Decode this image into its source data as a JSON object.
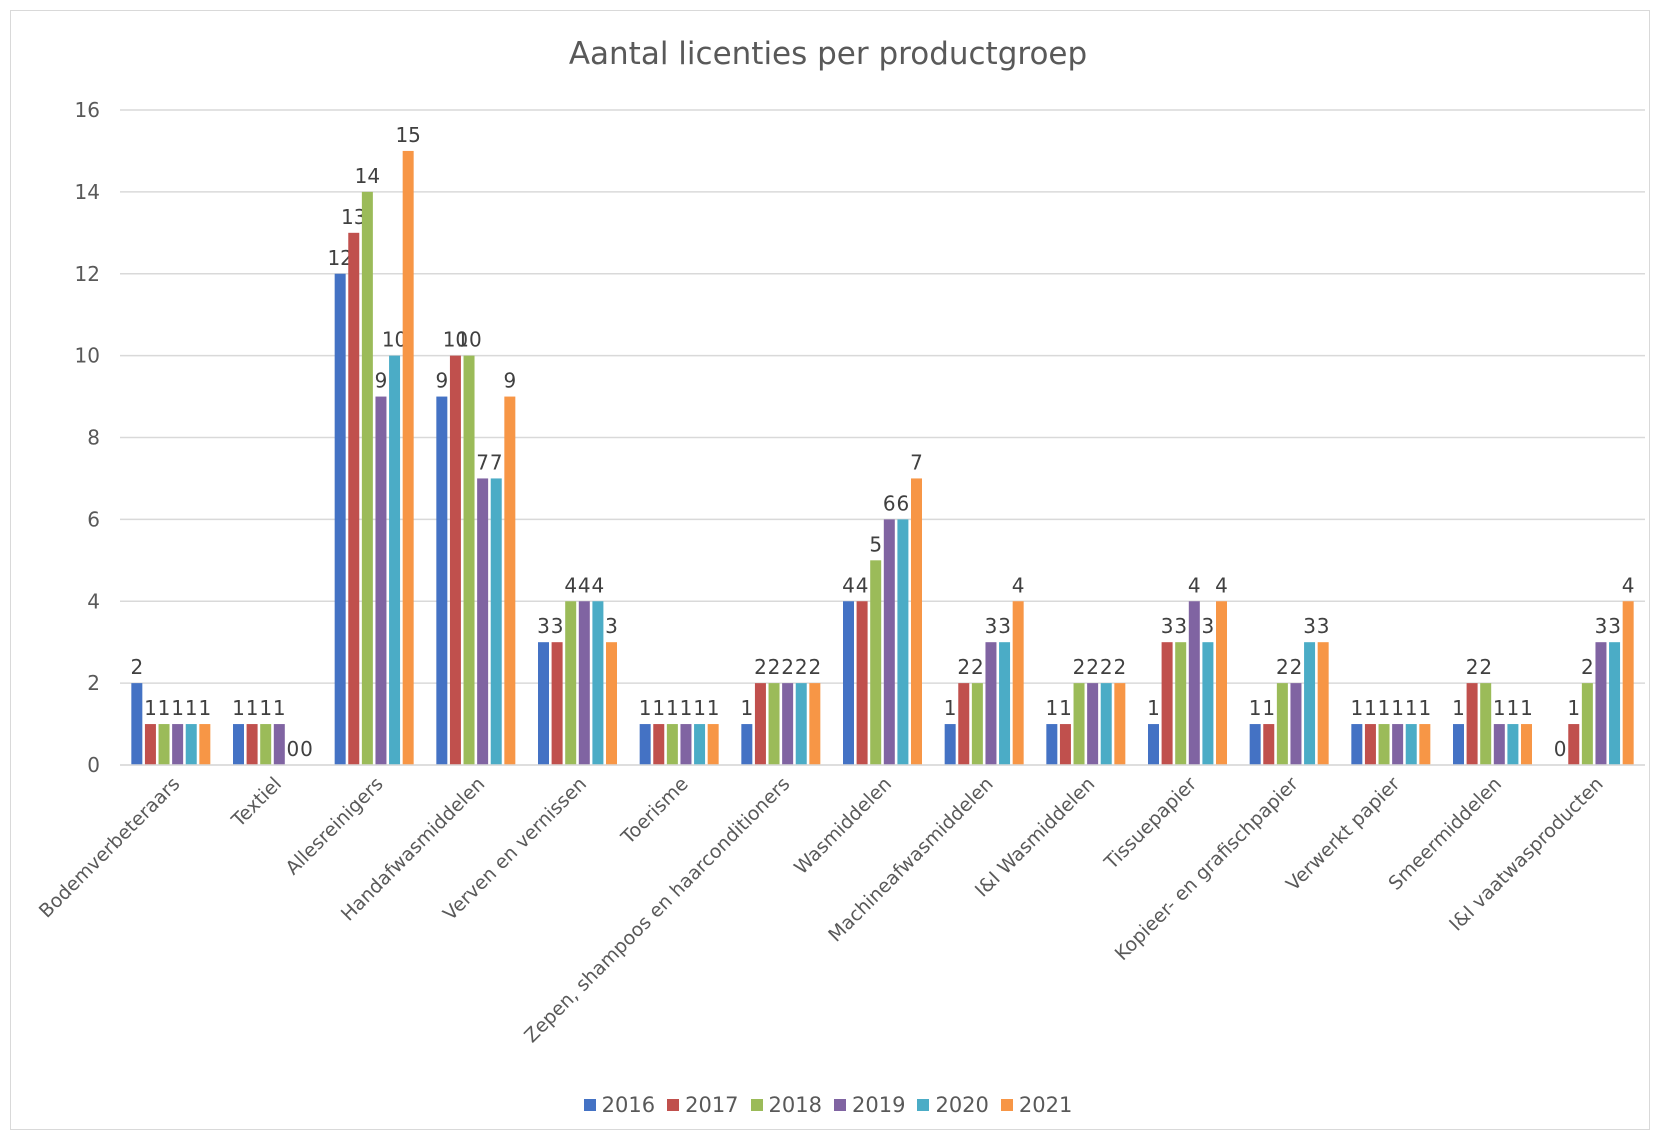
{
  "chart_data": {
    "type": "bar",
    "title": "Aantal licenties per productgroep",
    "xlabel": "",
    "ylabel": "",
    "ylim": [
      0,
      16
    ],
    "yticks": [
      "0",
      "2",
      "4",
      "6",
      "8",
      "10",
      "12",
      "14",
      "16"
    ],
    "grid": true,
    "legend_position": "bottom",
    "categories": [
      "Bodemverbeteraars",
      "Textiel",
      "Allesreinigers",
      "Handafwasmiddelen",
      "Verven en vernissen",
      "Toerisme",
      "Zepen, shampoos en haarconditioners",
      "Wasmiddelen",
      "Machineafwasmiddelen",
      "I&I Wasmiddelen",
      "Tissuepapier",
      "Kopieer- en grafischpapier",
      "Verwerkt papier",
      "Smeermiddelen",
      "I&I vaatwasproducten"
    ],
    "series": [
      {
        "name": "2016",
        "color": "#4472c4",
        "values": [
          2,
          1,
          12,
          9,
          3,
          1,
          1,
          4,
          1,
          1,
          1,
          1,
          1,
          1,
          0
        ]
      },
      {
        "name": "2017",
        "color": "#c0504d",
        "values": [
          1,
          1,
          13,
          10,
          3,
          1,
          2,
          4,
          2,
          1,
          3,
          1,
          1,
          2,
          1
        ]
      },
      {
        "name": "2018",
        "color": "#9bbb59",
        "values": [
          1,
          1,
          14,
          10,
          4,
          1,
          2,
          5,
          2,
          2,
          3,
          2,
          1,
          2,
          2
        ]
      },
      {
        "name": "2019",
        "color": "#8064a2",
        "values": [
          1,
          1,
          9,
          7,
          4,
          1,
          2,
          6,
          3,
          2,
          4,
          2,
          1,
          1,
          3
        ]
      },
      {
        "name": "2020",
        "color": "#4bacc6",
        "values": [
          1,
          0,
          10,
          7,
          4,
          1,
          2,
          6,
          3,
          2,
          3,
          3,
          1,
          1,
          3
        ]
      },
      {
        "name": "2021",
        "color": "#f79646",
        "values": [
          1,
          0,
          15,
          9,
          3,
          1,
          2,
          7,
          4,
          2,
          4,
          3,
          1,
          1,
          4
        ]
      }
    ]
  }
}
